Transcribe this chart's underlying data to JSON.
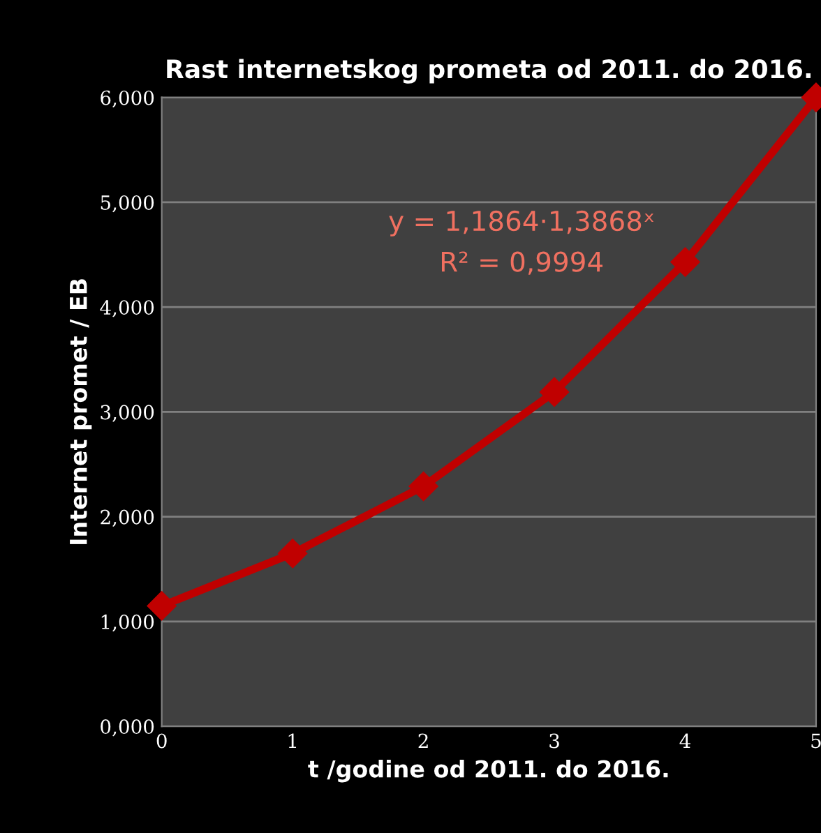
{
  "chart_data": {
    "type": "line",
    "title": "Rast internetskog prometa od 2011. do 2016.",
    "xlabel": "t /godine od 2011. do 2016.",
    "ylabel": "Internet promet / EB",
    "x": [
      0,
      1,
      2,
      3,
      4,
      5
    ],
    "series": [
      {
        "color": "#c00000",
        "values": [
          1.15,
          1.65,
          2.29,
          3.19,
          4.43,
          6.0
        ]
      }
    ],
    "marker": "diamond",
    "line_style": "solid",
    "grid": "y",
    "xlim": [
      0,
      5
    ],
    "xticks": [
      0,
      1,
      2,
      3,
      4,
      5
    ],
    "ylim": [
      0,
      6
    ],
    "yticks": [
      {
        "value": 0,
        "label": "0,000"
      },
      {
        "value": 1,
        "label": "1,000"
      },
      {
        "value": 2,
        "label": "2,000"
      },
      {
        "value": 3,
        "label": "3,000"
      },
      {
        "value": 4,
        "label": "4,000"
      },
      {
        "value": 5,
        "label": "5,000"
      },
      {
        "value": 6,
        "label": "6,000"
      }
    ],
    "annotations": [
      "y = 1,1864·1,3868ˣ",
      "R² = 0,9994"
    ]
  }
}
